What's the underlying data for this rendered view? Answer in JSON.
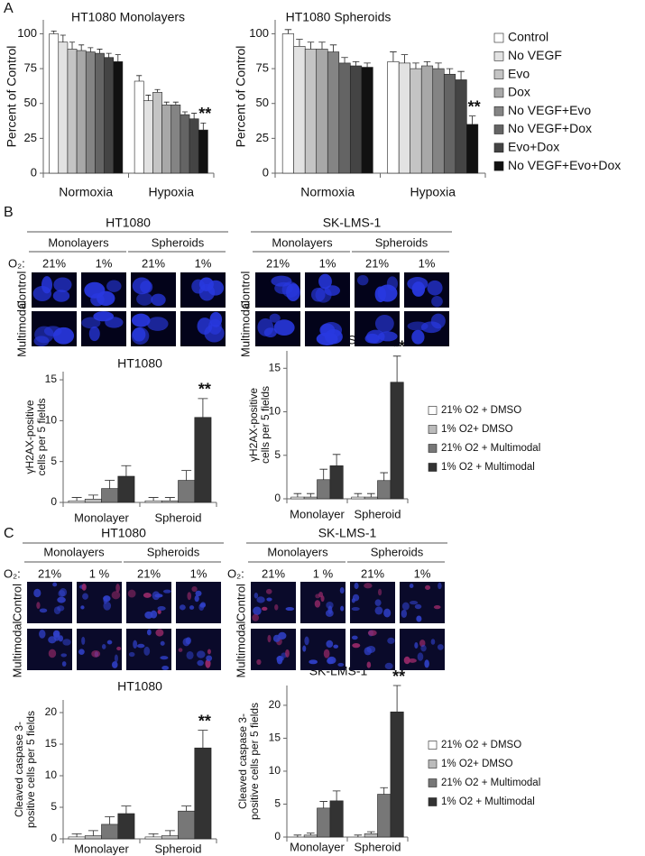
{
  "panel_labels": [
    "A",
    "B",
    "C"
  ],
  "chart_data": [
    {
      "type": "bar",
      "title": "HT1080 Monolayers",
      "ylabel": "Percent of Control",
      "categories": [
        "Normoxia",
        "Hypoxia"
      ],
      "ylim": [
        0,
        110
      ],
      "yticks": [
        0,
        25,
        50,
        75,
        100
      ],
      "annotation": "**",
      "series": [
        {
          "color": "#ffffff",
          "values": [
            100,
            66
          ],
          "errors": [
            2,
            4
          ]
        },
        {
          "color": "#e2e2e2",
          "values": [
            94,
            52
          ],
          "errors": [
            5,
            4
          ]
        },
        {
          "color": "#c4c4c4",
          "values": [
            89,
            58
          ],
          "errors": [
            5,
            2
          ]
        },
        {
          "color": "#a8a8a8",
          "values": [
            88,
            49
          ],
          "errors": [
            4,
            2
          ]
        },
        {
          "color": "#848484",
          "values": [
            87,
            49
          ],
          "errors": [
            3,
            2
          ]
        },
        {
          "color": "#646464",
          "values": [
            86,
            42
          ],
          "errors": [
            3,
            2
          ]
        },
        {
          "color": "#444444",
          "values": [
            83,
            39
          ],
          "errors": [
            3,
            4
          ]
        },
        {
          "color": "#111111",
          "values": [
            80,
            31
          ],
          "errors": [
            5,
            5
          ]
        }
      ]
    },
    {
      "type": "bar",
      "title": "HT1080 Spheroids",
      "ylabel": "Percent of Control",
      "categories": [
        "Normoxia",
        "Hypoxia"
      ],
      "ylim": [
        0,
        110
      ],
      "yticks": [
        0,
        25,
        50,
        75,
        100
      ],
      "annotation": "**",
      "legend": "right",
      "series": [
        {
          "name": "Control",
          "color": "#ffffff",
          "values": [
            100,
            80
          ],
          "errors": [
            3,
            7
          ]
        },
        {
          "name": "No VEGF",
          "color": "#e2e2e2",
          "values": [
            91,
            79
          ],
          "errors": [
            5,
            6
          ]
        },
        {
          "name": "Evo",
          "color": "#c4c4c4",
          "values": [
            89,
            75
          ],
          "errors": [
            5,
            4
          ]
        },
        {
          "name": "Dox",
          "color": "#a8a8a8",
          "values": [
            89,
            77
          ],
          "errors": [
            5,
            3
          ]
        },
        {
          "name": "No VEGF+Evo",
          "color": "#848484",
          "values": [
            87,
            75
          ],
          "errors": [
            5,
            4
          ]
        },
        {
          "name": "No VEGF+Dox",
          "color": "#646464",
          "values": [
            79,
            71
          ],
          "errors": [
            4,
            4
          ]
        },
        {
          "name": "Evo+Dox",
          "color": "#444444",
          "values": [
            77,
            67
          ],
          "errors": [
            3,
            6
          ]
        },
        {
          "name": "No VEGF+Evo+Dox",
          "color": "#111111",
          "values": [
            76,
            35
          ],
          "errors": [
            3,
            6
          ]
        }
      ]
    },
    {
      "type": "bar",
      "title": "HT1080",
      "ylabel": [
        "γH2AX-positive",
        "cells per 5 fields"
      ],
      "categories": [
        "Monolayer",
        "Spheroid"
      ],
      "ylim": [
        0,
        16
      ],
      "yticks": [
        0,
        5,
        10,
        15
      ],
      "annotation": "**",
      "series": [
        {
          "color": "#ffffff",
          "values": [
            0.2,
            0.2
          ],
          "errors": [
            0.4,
            0.4
          ]
        },
        {
          "color": "#bbbbbb",
          "values": [
            0.4,
            0.2
          ],
          "errors": [
            0.5,
            0.4
          ]
        },
        {
          "color": "#777777",
          "values": [
            1.7,
            2.7
          ],
          "errors": [
            1,
            1.2
          ]
        },
        {
          "color": "#333333",
          "values": [
            3.2,
            10.4
          ],
          "errors": [
            1.3,
            2.3
          ]
        }
      ]
    },
    {
      "type": "bar",
      "title": "SK-LMS-1",
      "ylabel": [
        "γH2AX-positive",
        "cells per 5 fields"
      ],
      "categories": [
        "Monolayer",
        "Spheroid"
      ],
      "ylim": [
        0,
        17
      ],
      "yticks": [
        0,
        5,
        10,
        15
      ],
      "annotation": "**",
      "legend": "right",
      "series": [
        {
          "name": "21% O2 + DMSO",
          "color": "#ffffff",
          "values": [
            0.2,
            0.2
          ],
          "errors": [
            0.4,
            0.4
          ]
        },
        {
          "name": "1% O2+ DMSO",
          "color": "#bbbbbb",
          "values": [
            0.2,
            0.2
          ],
          "errors": [
            0.4,
            0.4
          ]
        },
        {
          "name": "21% O2 + Multimodal",
          "color": "#777777",
          "values": [
            2.2,
            2.1
          ],
          "errors": [
            1.2,
            0.9
          ]
        },
        {
          "name": "1% O2 + Multimodal",
          "color": "#333333",
          "values": [
            3.8,
            13.4
          ],
          "errors": [
            1.3,
            3
          ]
        }
      ]
    },
    {
      "type": "bar",
      "title": "HT1080",
      "ylabel": [
        "Cleaved caspase 3-",
        "positive cells per 5 fields"
      ],
      "categories": [
        "Monolayer",
        "Spheroid"
      ],
      "ylim": [
        0,
        22
      ],
      "yticks": [
        0,
        5,
        10,
        15,
        20
      ],
      "annotation": "**",
      "series": [
        {
          "color": "#ffffff",
          "values": [
            0.3,
            0.3
          ],
          "errors": [
            0.5,
            0.5
          ]
        },
        {
          "color": "#bbbbbb",
          "values": [
            0.5,
            0.5
          ],
          "errors": [
            0.8,
            0.8
          ]
        },
        {
          "color": "#777777",
          "values": [
            2.3,
            4.4
          ],
          "errors": [
            1.2,
            0.8
          ]
        },
        {
          "color": "#333333",
          "values": [
            4,
            14.4
          ],
          "errors": [
            1.2,
            2.8
          ]
        }
      ]
    },
    {
      "type": "bar",
      "title": "SK-LMS-1",
      "ylabel": [
        "Cleaved caspase 3-",
        "positive cells per 5 fields"
      ],
      "categories": [
        "Monolayer",
        "Spheroid"
      ],
      "ylim": [
        0,
        23
      ],
      "yticks": [
        0,
        5,
        10,
        15,
        20
      ],
      "annotation": "**",
      "legend": "right",
      "series": [
        {
          "name": "21% O2 + DMSO",
          "color": "#ffffff",
          "values": [
            0,
            0
          ],
          "errors": [
            0.3,
            0.3
          ]
        },
        {
          "name": "1% O2+ DMSO",
          "color": "#bbbbbb",
          "values": [
            0.3,
            0.5
          ],
          "errors": [
            0.3,
            0.3
          ]
        },
        {
          "name": "21% O2 + Multimodal",
          "color": "#777777",
          "values": [
            4.4,
            6.5
          ],
          "errors": [
            1,
            1
          ]
        },
        {
          "name": "1% O2 + Multimodal",
          "color": "#333333",
          "values": [
            5.5,
            19
          ],
          "errors": [
            1.5,
            4
          ]
        }
      ]
    }
  ],
  "micrographs": [
    {
      "blocks": [
        {
          "cell_line": "HT1080",
          "groups": [
            "Monolayers",
            "Spheroids"
          ],
          "o2_label": "O₂:",
          "o2": [
            "21%",
            "1%",
            "21%",
            "1%"
          ],
          "rows": [
            "Control",
            "Multimodal"
          ]
        },
        {
          "cell_line": "SK-LMS-1",
          "groups": [
            "Monolayers",
            "Spheroids"
          ],
          "o2": [
            "21%",
            "1%",
            "21%",
            "1%"
          ],
          "rows": [
            "Control",
            "Multimodal"
          ]
        }
      ]
    },
    {
      "blocks": [
        {
          "cell_line": "HT1080",
          "groups": [
            "Monolayers",
            "Spheroids"
          ],
          "o2_label": "O₂:",
          "o2": [
            "21%",
            "1 %",
            "21%",
            "1%"
          ],
          "rows": [
            "Control",
            "Multimodal"
          ]
        },
        {
          "cell_line": "SK-LMS-1",
          "groups": [
            "Monolayers",
            "Spheroids"
          ],
          "o2_label": "O₂:",
          "o2": [
            "21%",
            "1 %",
            "21%",
            "1%"
          ],
          "rows": [
            "Control",
            "Multimodal"
          ]
        }
      ]
    }
  ]
}
